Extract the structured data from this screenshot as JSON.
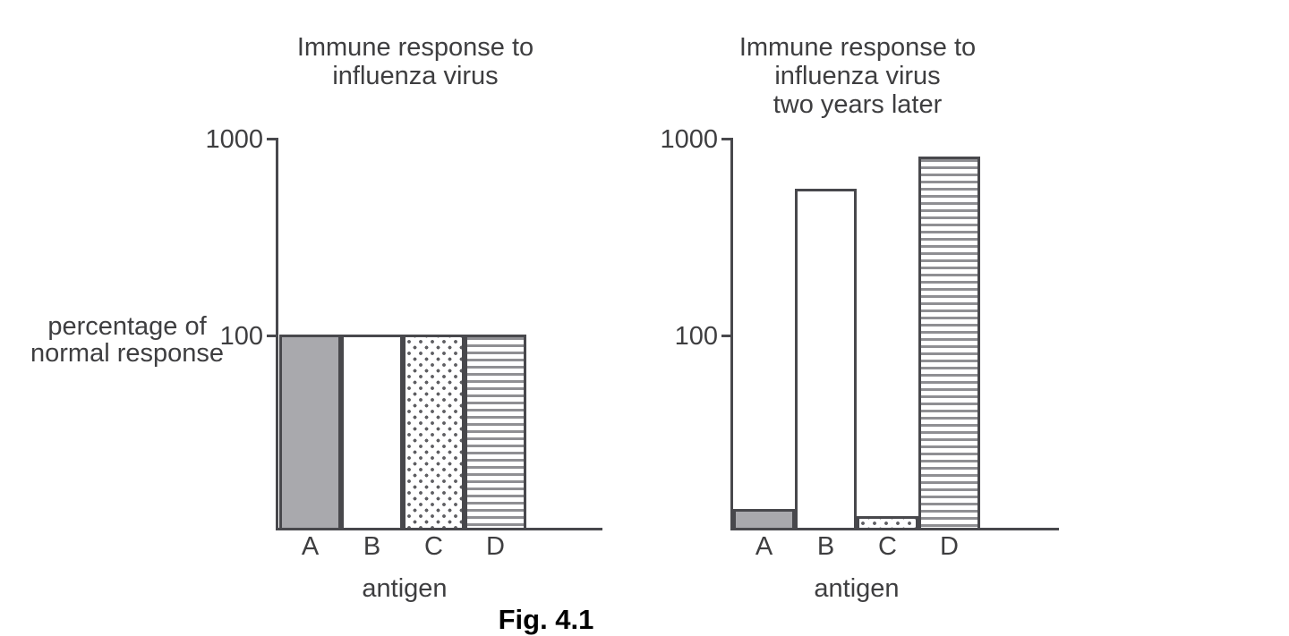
{
  "figure": {
    "caption": "Fig. 4.1"
  },
  "colors": {
    "background": "#ffffff",
    "line": "#48484c",
    "text": "#3e3e40",
    "caption_text": "#000000",
    "bar_gray_fill": "#a9a9ad",
    "stripe_gray": "#8f8f93",
    "dot_gray": "#5f5f63"
  },
  "chart_data": [
    {
      "type": "bar",
      "title_lines": [
        "Immune response to",
        "influenza virus"
      ],
      "ylabel_lines": [
        "percentage of",
        "normal response"
      ],
      "xlabel": "antigen",
      "categories": [
        "A",
        "B",
        "C",
        "D"
      ],
      "values": [
        100,
        100,
        100,
        100
      ],
      "bar_patterns": [
        "solid-gray",
        "plain-white",
        "dots",
        "horizontal-stripes"
      ],
      "yscale": "log",
      "yticks": [
        1000,
        100
      ],
      "ytick_labels": [
        "1000",
        "100"
      ],
      "ylim": [
        10,
        1000
      ],
      "grid": false,
      "legend": null
    },
    {
      "type": "bar",
      "title_lines": [
        "Immune response to",
        "influenza virus",
        "two years later"
      ],
      "ylabel_lines": [],
      "xlabel": "antigen",
      "categories": [
        "A",
        "B",
        "C",
        "D"
      ],
      "values": [
        13,
        550,
        12,
        800
      ],
      "bar_patterns": [
        "solid-gray",
        "plain-white",
        "dots",
        "horizontal-stripes"
      ],
      "yscale": "log",
      "yticks": [
        1000,
        100
      ],
      "ytick_labels": [
        "1000",
        "100"
      ],
      "ylim": [
        10,
        1000
      ],
      "grid": false,
      "legend": null
    }
  ]
}
